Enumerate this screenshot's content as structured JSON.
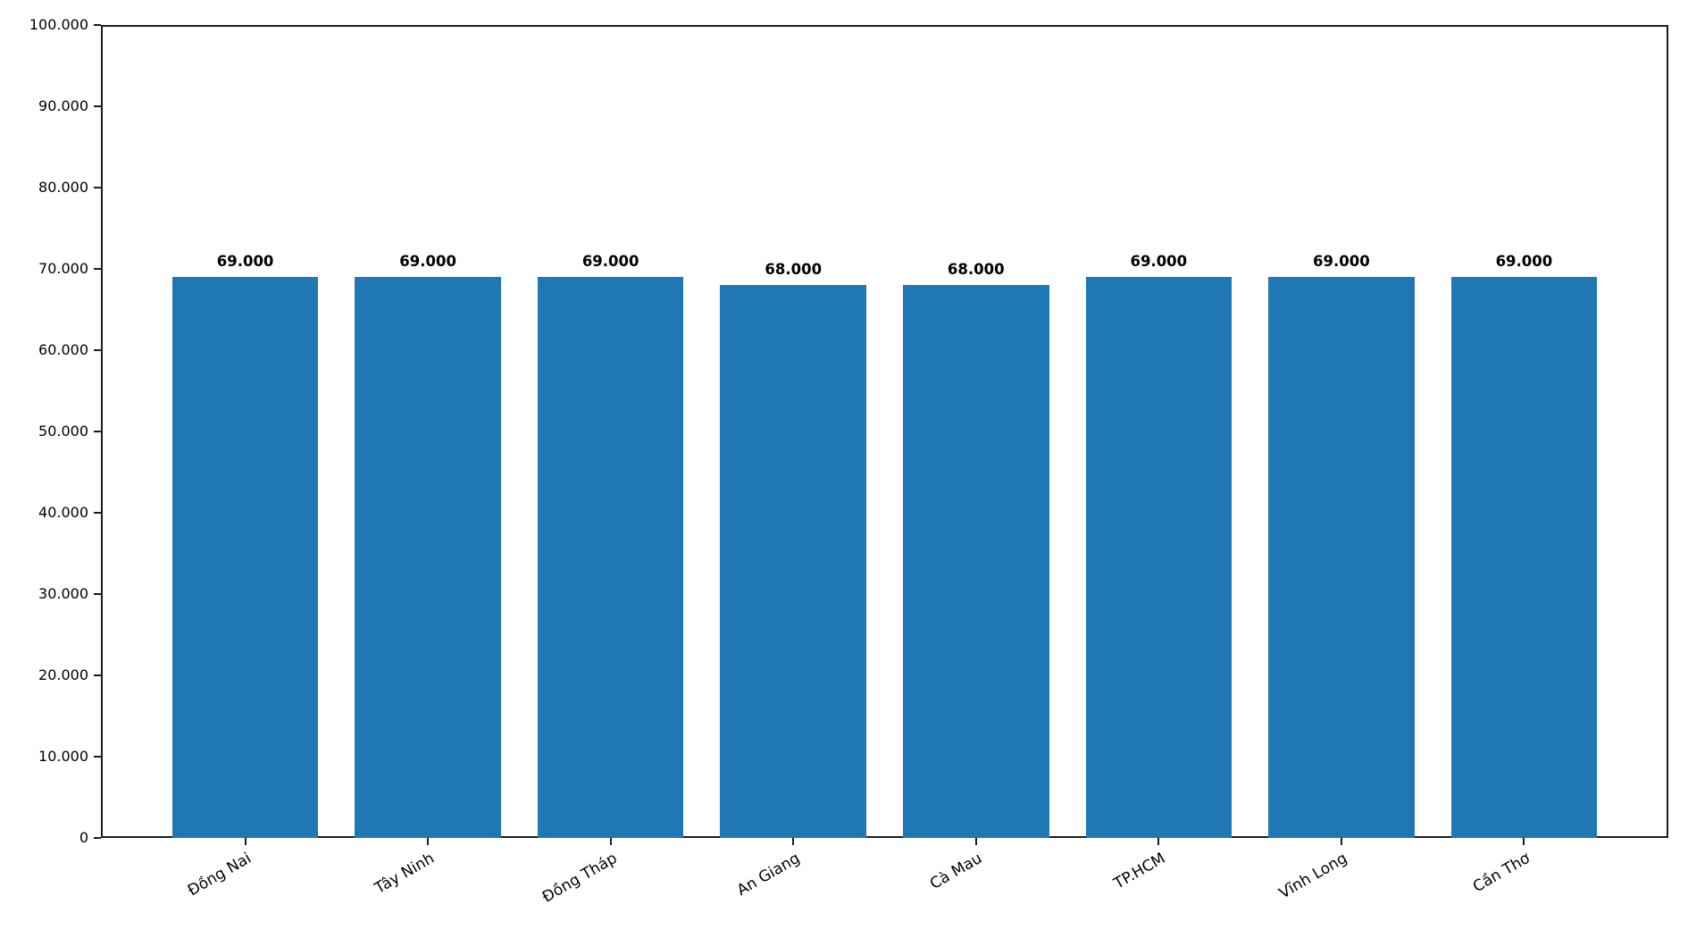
{
  "figure": {
    "background_color": "#ffffff"
  },
  "chart_data": {
    "type": "bar",
    "title": "",
    "xlabel": "",
    "ylabel": "",
    "categories": [
      "Đồng Nai",
      "Tây Ninh",
      "Đồng Tháp",
      "An Giang",
      "Cà Mau",
      "TP.HCM",
      "Vĩnh Long",
      "Cần Thơ"
    ],
    "values": [
      69000,
      69000,
      69000,
      68000,
      68000,
      69000,
      69000,
      69000
    ],
    "bar_value_labels": [
      "69.000",
      "69.000",
      "69.000",
      "68.000",
      "68.000",
      "69.000",
      "69.000",
      "69.000"
    ],
    "ylim": [
      0,
      100000
    ],
    "yticks": [
      0,
      10000,
      20000,
      30000,
      40000,
      50000,
      60000,
      70000,
      80000,
      90000,
      100000
    ],
    "ytick_labels": [
      "0",
      "10.000",
      "20.000",
      "30.000",
      "40.000",
      "50.000",
      "60.000",
      "70.000",
      "80.000",
      "90.000",
      "100.000"
    ],
    "grid": false,
    "legend_position": "none",
    "bar_color": "#1f77b4",
    "axis_color": "#1c1c1c",
    "text_color": "#000000",
    "x_tick_rotation_deg": 30
  }
}
